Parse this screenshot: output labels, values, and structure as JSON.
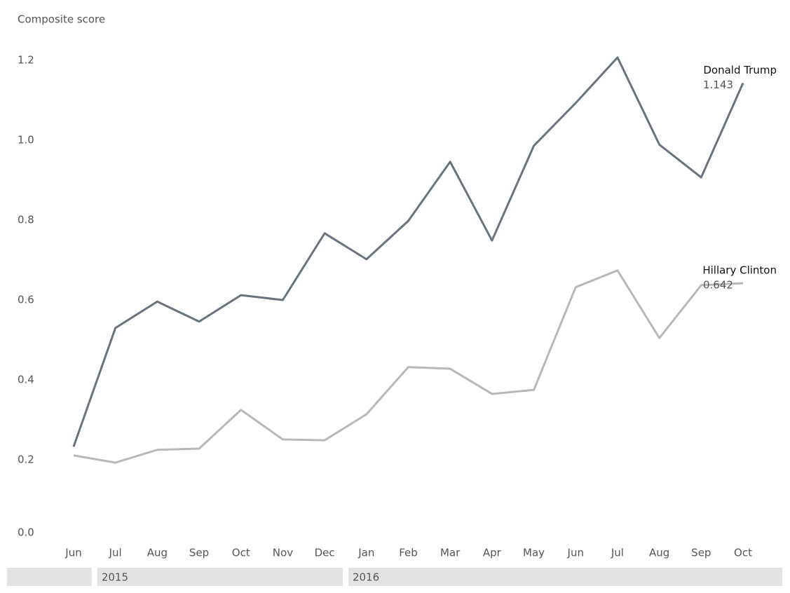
{
  "chart_data": {
    "type": "line",
    "y_label": "Composite score",
    "categories": [
      "Jun",
      "Jul",
      "Aug",
      "Sep",
      "Oct",
      "Nov",
      "Dec",
      "Jan",
      "Feb",
      "Mar",
      "Apr",
      "May",
      "Jun",
      "Jul",
      "Aug",
      "Sep",
      "Oct"
    ],
    "groups": [
      {
        "label": "2015",
        "first": 1,
        "last": 6
      },
      {
        "label": "2016",
        "first": 7,
        "last": 16
      }
    ],
    "series": [
      {
        "name": "Donald Trump",
        "color": "#67737e",
        "values": [
          0.233,
          0.53,
          0.596,
          0.546,
          0.612,
          0.6,
          0.767,
          0.702,
          0.798,
          0.946,
          0.749,
          0.986,
          1.093,
          1.207,
          0.989,
          0.907,
          1.143
        ]
      },
      {
        "name": "Hillary Clinton",
        "color": "#b8b8b8",
        "values": [
          0.211,
          0.193,
          0.225,
          0.228,
          0.325,
          0.251,
          0.249,
          0.314,
          0.432,
          0.428,
          0.365,
          0.375,
          0.632,
          0.674,
          0.505,
          0.637,
          0.642
        ]
      }
    ],
    "ylim": [
      0,
      1.25
    ],
    "yticks": [
      {
        "value": 0,
        "label": "0.0"
      },
      0.2,
      0.4,
      0.6,
      0.8,
      {
        "value": 1,
        "label": "1.0"
      },
      1.2
    ],
    "grid": false
  }
}
